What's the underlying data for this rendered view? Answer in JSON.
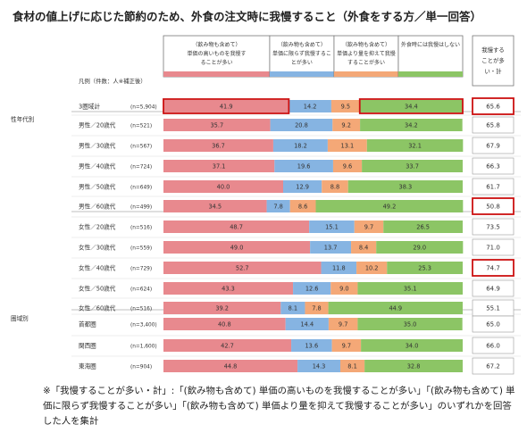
{
  "title": "食材の値上げに応じた節約のため、外食の注文時に我慢すること（外食をする方／単一回答）",
  "legend_label": "凡例（件数：人※補正後）",
  "headers": [
    "（飲み物も含めて）単価の高いものを我慢することが多い",
    "（飲み物も含めて）単価に限らず我慢することが多い",
    "（飲み物も含めて）単価より量を抑えて我慢することが多い",
    "外食時には我慢はしない"
  ],
  "total_header": "我慢することが多い・計",
  "group_labels": {
    "gender_age": "性年代別",
    "region": "圏域別"
  },
  "note": "※「我慢することが多い・計」:「(飲み物も含めて) 単価の高いものを我慢することが多い」「(飲み物も含めて) 単価に限らず我慢することが多い」「(飲み物も含めて) 単価より量を抑えて我慢することが多い」のいずれかを回答した人を集計",
  "colors": {
    "s1": "#e8898e",
    "s2": "#86b4e2",
    "s3": "#f4a877",
    "s4": "#8cc565",
    "highlight": "#cc1111"
  },
  "chart_data": {
    "type": "bar",
    "orientation": "horizontal-stacked-100",
    "series_names": [
      "（飲み物も含めて）単価の高いものを我慢することが多い",
      "（飲み物も含めて）単価に限らず我慢することが多い",
      "（飲み物も含めて）単価より量を抑えて我慢することが多い",
      "外食時には我慢はしない"
    ],
    "rows": [
      {
        "label": "3圏域計",
        "n": "(n=5,904)",
        "values": [
          41.9,
          14.2,
          9.5,
          34.4
        ],
        "total": "65.6",
        "highlight_bar": true,
        "highlight_total": true
      },
      {
        "label": "男性／20歳代",
        "n": "(n=521)",
        "values": [
          35.7,
          20.8,
          9.2,
          34.2
        ],
        "total": "65.8"
      },
      {
        "label": "男性／30歳代",
        "n": "(n=567)",
        "values": [
          36.7,
          18.2,
          13.1,
          32.1
        ],
        "total": "67.9"
      },
      {
        "label": "男性／40歳代",
        "n": "(n=724)",
        "values": [
          37.1,
          19.6,
          9.6,
          33.7
        ],
        "total": "66.3"
      },
      {
        "label": "男性／50歳代",
        "n": "(n=649)",
        "values": [
          40.0,
          12.9,
          8.8,
          38.3
        ],
        "total": "61.7"
      },
      {
        "label": "男性／60歳代",
        "n": "(n=499)",
        "values": [
          34.5,
          7.8,
          8.6,
          49.2
        ],
        "total": "50.8",
        "highlight_total": true
      },
      {
        "label": "女性／20歳代",
        "n": "(n=516)",
        "values": [
          48.7,
          15.1,
          9.7,
          26.5
        ],
        "total": "73.5"
      },
      {
        "label": "女性／30歳代",
        "n": "(n=559)",
        "values": [
          49.0,
          13.7,
          8.4,
          29.0
        ],
        "total": "71.0"
      },
      {
        "label": "女性／40歳代",
        "n": "(n=729)",
        "values": [
          52.7,
          11.8,
          10.2,
          25.3
        ],
        "total": "74.7",
        "highlight_total": true
      },
      {
        "label": "女性／50歳代",
        "n": "(n=624)",
        "values": [
          43.3,
          12.6,
          9.0,
          35.1
        ],
        "total": "64.9"
      },
      {
        "label": "女性／60歳代",
        "n": "(n=516)",
        "values": [
          39.2,
          8.1,
          7.8,
          44.9
        ],
        "total": "55.1"
      },
      {
        "label": "首都圏",
        "n": "(n=3,400)",
        "values": [
          40.8,
          14.4,
          9.7,
          35.0
        ],
        "total": "65.0"
      },
      {
        "label": "関西圏",
        "n": "(n=1,600)",
        "values": [
          42.7,
          13.6,
          9.7,
          34.0
        ],
        "total": "66.0"
      },
      {
        "label": "東海圏",
        "n": "(n=904)",
        "values": [
          44.8,
          14.3,
          8.1,
          32.8
        ],
        "total": "67.2"
      }
    ],
    "xlim": [
      0,
      100
    ]
  }
}
